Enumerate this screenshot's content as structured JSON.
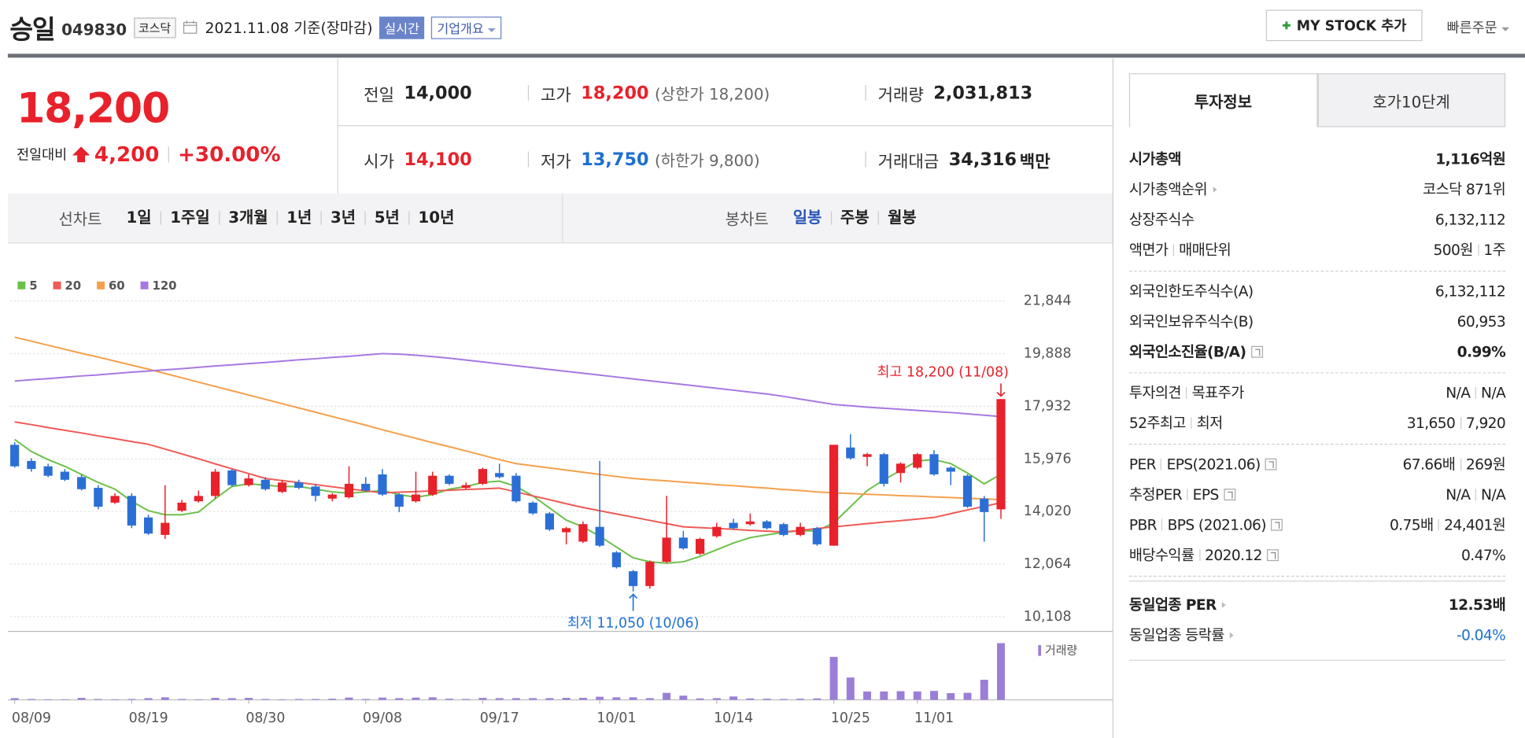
{
  "header": {
    "name": "승일",
    "code": "049830",
    "market": "코스닥",
    "date": "2021.11.08 기준(장마감)",
    "realtime": "실시간",
    "overview": "기업개요",
    "mystock": "MY STOCK 추가",
    "quick_order": "빠른주문"
  },
  "quote": {
    "price": "18,200",
    "change_label": "전일대비",
    "change": "4,200",
    "change_rate": "+30.00%",
    "items": [
      {
        "label": "전일",
        "value": "14,000"
      },
      {
        "label": "고가",
        "value": "18,200",
        "note": "(상한가 18,200)",
        "color": "#e8212b"
      },
      {
        "label": "거래량",
        "value": "2,031,813"
      },
      {
        "label": "시가",
        "value": "14,100",
        "color": "#e8212b"
      },
      {
        "label": "저가",
        "value": "13,750",
        "note": "(하한가 9,800)",
        "color": "#1c6fd2"
      },
      {
        "label": "거래대금",
        "value": "34,316",
        "unit": "백만"
      }
    ]
  },
  "chart_tabs": {
    "line_label": "선차트",
    "line_periods": [
      "1일",
      "1주일",
      "3개월",
      "1년",
      "3년",
      "5년",
      "10년"
    ],
    "candle_label": "봉차트",
    "candle_periods": [
      "일봉",
      "주봉",
      "월봉"
    ]
  },
  "chart_data": {
    "type": "candlestick",
    "categories": [
      "08/09",
      null,
      null,
      null,
      null,
      null,
      null,
      "08/19",
      null,
      null,
      null,
      null,
      null,
      null,
      "08/30",
      null,
      null,
      null,
      null,
      null,
      null,
      "09/08",
      null,
      null,
      null,
      null,
      null,
      null,
      "09/17",
      null,
      null,
      null,
      null,
      null,
      null,
      "10/01",
      null,
      null,
      null,
      null,
      null,
      null,
      "10/14",
      null,
      null,
      null,
      null,
      null,
      null,
      "10/25",
      null,
      null,
      null,
      null,
      "11/01",
      null,
      null,
      null,
      null,
      null
    ],
    "ohlc": [
      [
        16500,
        16600,
        15650,
        15700
      ],
      [
        15900,
        16000,
        15500,
        15600
      ],
      [
        15700,
        15800,
        15300,
        15350
      ],
      [
        15500,
        15600,
        15150,
        15200
      ],
      [
        15300,
        15400,
        14800,
        14850
      ],
      [
        14900,
        15000,
        14100,
        14200
      ],
      [
        14350,
        14700,
        14300,
        14600
      ],
      [
        14600,
        14700,
        13400,
        13500
      ],
      [
        13800,
        13900,
        13150,
        13200
      ],
      [
        13150,
        15000,
        13000,
        13600
      ],
      [
        14050,
        14450,
        14000,
        14350
      ],
      [
        14400,
        14800,
        14350,
        14600
      ],
      [
        14600,
        15600,
        14500,
        15500
      ],
      [
        15550,
        15600,
        14950,
        15000
      ],
      [
        15000,
        15400,
        14950,
        15250
      ],
      [
        15200,
        15300,
        14800,
        14850
      ],
      [
        14750,
        15200,
        14700,
        15100
      ],
      [
        15100,
        15200,
        14850,
        14900
      ],
      [
        14950,
        15050,
        14400,
        14600
      ],
      [
        14500,
        14700,
        14400,
        14650
      ],
      [
        14550,
        15700,
        14500,
        15050
      ],
      [
        15050,
        15300,
        14750,
        14800
      ],
      [
        15400,
        15600,
        14600,
        14650
      ],
      [
        14650,
        14700,
        14000,
        14200
      ],
      [
        14400,
        15500,
        14350,
        14650
      ],
      [
        14650,
        15500,
        14600,
        15350
      ],
      [
        15350,
        15400,
        15000,
        15050
      ],
      [
        14900,
        15100,
        14850,
        15000
      ],
      [
        15050,
        15650,
        15000,
        15600
      ],
      [
        15450,
        15800,
        15250,
        15300
      ],
      [
        15350,
        15450,
        14350,
        14400
      ],
      [
        14350,
        14400,
        13900,
        13950
      ],
      [
        13950,
        14000,
        13300,
        13350
      ],
      [
        13250,
        13450,
        12800,
        13400
      ],
      [
        12900,
        13650,
        12850,
        13550
      ],
      [
        13450,
        15900,
        12700,
        12750
      ],
      [
        12500,
        12550,
        11900,
        11950
      ],
      [
        11800,
        11850,
        11050,
        11250
      ],
      [
        11250,
        12200,
        11150,
        12150
      ],
      [
        12150,
        14600,
        12100,
        13050
      ],
      [
        13050,
        13300,
        12600,
        12650
      ],
      [
        12450,
        13050,
        12400,
        13000
      ],
      [
        13100,
        13600,
        13050,
        13450
      ],
      [
        13600,
        13750,
        13350,
        13400
      ],
      [
        13550,
        13950,
        13500,
        13650
      ],
      [
        13650,
        13700,
        13350,
        13400
      ],
      [
        13550,
        13600,
        13100,
        13150
      ],
      [
        13150,
        13600,
        13100,
        13450
      ],
      [
        13400,
        13450,
        12750,
        12800
      ],
      [
        12750,
        16500,
        12750,
        16500
      ],
      [
        16400,
        16900,
        15950,
        16000
      ],
      [
        16050,
        16200,
        15700,
        16150
      ],
      [
        16150,
        16200,
        14950,
        15050
      ],
      [
        15450,
        15850,
        15100,
        15800
      ],
      [
        15650,
        16200,
        15600,
        16150
      ],
      [
        16150,
        16300,
        15350,
        15400
      ],
      [
        15650,
        15700,
        15000,
        15500
      ],
      [
        15350,
        15400,
        14150,
        14200
      ],
      [
        14500,
        14600,
        12900,
        14000
      ],
      [
        14100,
        18200,
        13750,
        18200
      ]
    ],
    "up_color": "#e8212b",
    "down_color": "#2b6fd6",
    "series": [
      {
        "name": "5",
        "color": "#6cc04a",
        "values": [
          16700,
          16250,
          15950,
          15700,
          15400,
          15100,
          14850,
          14400,
          14050,
          13900,
          13900,
          14000,
          14500,
          14950,
          15050,
          15000,
          14950,
          14950,
          14850,
          14750,
          14700,
          14750,
          14800,
          14650,
          14550,
          14650,
          14850,
          14950,
          15100,
          15150,
          14950,
          14600,
          14150,
          13700,
          13450,
          13100,
          12700,
          12300,
          12150,
          12100,
          12150,
          12350,
          12600,
          12850,
          13050,
          13150,
          13250,
          13300,
          13300,
          13600,
          14200,
          14800,
          15200,
          15550,
          15900,
          15950,
          15800,
          15450,
          15050,
          15400
        ]
      },
      {
        "name": "20",
        "color": "#ef5a55",
        "values": [
          17350,
          17250,
          17140,
          17040,
          16940,
          16830,
          16730,
          16620,
          16520,
          16340,
          16160,
          15980,
          15790,
          15610,
          15430,
          15250,
          15170,
          15100,
          15020,
          14940,
          14860,
          14790,
          14710,
          14740,
          14760,
          14790,
          14810,
          14840,
          14860,
          14890,
          14750,
          14600,
          14460,
          14310,
          14170,
          14050,
          13930,
          13810,
          13690,
          13570,
          13450,
          13420,
          13390,
          13360,
          13320,
          13290,
          13260,
          13320,
          13390,
          13450,
          13510,
          13570,
          13630,
          13680,
          13740,
          13800,
          13940,
          14080,
          14210,
          14350
        ]
      },
      {
        "name": "60",
        "color": "#f5a04a",
        "values": [
          20500,
          20350,
          20200,
          20050,
          19900,
          19760,
          19610,
          19460,
          19310,
          19150,
          18990,
          18830,
          18670,
          18510,
          18350,
          18190,
          18030,
          17870,
          17710,
          17550,
          17390,
          17230,
          17060,
          16900,
          16740,
          16580,
          16430,
          16270,
          16110,
          15950,
          15800,
          15720,
          15640,
          15560,
          15480,
          15400,
          15320,
          15250,
          15200,
          15160,
          15110,
          15070,
          15020,
          14980,
          14930,
          14890,
          14840,
          14800,
          14750,
          14710,
          14690,
          14660,
          14640,
          14610,
          14590,
          14560,
          14540,
          14510,
          14490,
          14460
        ]
      },
      {
        "name": "120",
        "color": "#a678e2",
        "values": [
          18870,
          18920,
          18960,
          19010,
          19060,
          19100,
          19150,
          19200,
          19240,
          19290,
          19330,
          19380,
          19430,
          19470,
          19520,
          19560,
          19610,
          19660,
          19700,
          19750,
          19790,
          19840,
          19890,
          19870,
          19830,
          19780,
          19720,
          19650,
          19580,
          19510,
          19440,
          19370,
          19300,
          19230,
          19160,
          19090,
          19020,
          18950,
          18880,
          18810,
          18740,
          18670,
          18600,
          18530,
          18460,
          18390,
          18300,
          18200,
          18100,
          18000,
          17950,
          17900,
          17860,
          17820,
          17780,
          17740,
          17700,
          17650,
          17600,
          17550
        ]
      }
    ],
    "volume": {
      "name": "거래량",
      "color": "#9b7ed6",
      "values": [
        60000,
        30000,
        20000,
        20000,
        70000,
        30000,
        20000,
        30000,
        60000,
        90000,
        30000,
        20000,
        70000,
        60000,
        70000,
        30000,
        20000,
        30000,
        30000,
        40000,
        80000,
        30000,
        80000,
        60000,
        80000,
        90000,
        40000,
        30000,
        70000,
        60000,
        60000,
        60000,
        60000,
        70000,
        70000,
        110000,
        90000,
        90000,
        60000,
        250000,
        150000,
        50000,
        60000,
        120000,
        50000,
        40000,
        30000,
        40000,
        50000,
        1540000,
        800000,
        300000,
        300000,
        310000,
        300000,
        320000,
        240000,
        250000,
        720000,
        2031813
      ]
    },
    "ylim": [
      10108,
      21844
    ],
    "yticks": [
      {
        "value": 21844,
        "label": "21,844"
      },
      {
        "value": 19888,
        "label": "19,888"
      },
      {
        "value": 17932,
        "label": "17,932"
      },
      {
        "value": 15976,
        "label": "15,976"
      },
      {
        "value": 14020,
        "label": "14,020"
      },
      {
        "value": 12064,
        "label": "12,064"
      },
      {
        "value": 10108,
        "label": "10,108"
      }
    ],
    "grid": true,
    "max_label": "최고 18,200 (11/08)",
    "max_color": "#e8212b",
    "min_label": "최저 11,050 (10/06)",
    "min_color": "#1c6fd2"
  },
  "invest_info": {
    "tabs": [
      "투자정보",
      "호가10단계"
    ],
    "sections": [
      [
        {
          "label": [
            "시가총액"
          ],
          "value": [
            "1,116억원"
          ],
          "bold": true
        },
        {
          "label": [
            "시가총액순위"
          ],
          "value": [
            "코스닥 871위"
          ],
          "arrow": true
        },
        {
          "label": [
            "상장주식수"
          ],
          "value": [
            "6,132,112"
          ]
        },
        {
          "label": [
            "액면가",
            "매매단위"
          ],
          "value": [
            "500원",
            "1주"
          ]
        }
      ],
      [
        {
          "label": [
            "외국인한도주식수(A)"
          ],
          "value": [
            "6,132,112"
          ]
        },
        {
          "label": [
            "외국인보유주식수(B)"
          ],
          "value": [
            "60,953"
          ]
        },
        {
          "label": [
            "외국인소진율(B/A)"
          ],
          "value": [
            "0.99%"
          ],
          "bold": true,
          "help": true
        }
      ],
      [
        {
          "label": [
            "투자의견",
            "목표주가"
          ],
          "value": [
            "N/A",
            "N/A"
          ]
        },
        {
          "label": [
            "52주최고",
            "최저"
          ],
          "value": [
            "31,650",
            "7,920"
          ]
        }
      ],
      [
        {
          "label": [
            "PER",
            "EPS(2021.06)"
          ],
          "value": [
            "67.66배",
            "269원"
          ],
          "help": true
        },
        {
          "label": [
            "추정PER",
            "EPS"
          ],
          "value": [
            "N/A",
            "N/A"
          ],
          "help": true
        },
        {
          "label": [
            "PBR",
            "BPS (2021.06)"
          ],
          "value": [
            "0.75배",
            "24,401원"
          ],
          "help": true
        },
        {
          "label": [
            "배당수익률",
            "2020.12"
          ],
          "value": [
            "0.47%"
          ],
          "help": true
        }
      ],
      [
        {
          "label": [
            "동일업종 PER"
          ],
          "value": [
            "12.53배"
          ],
          "bold": true,
          "arrow": true
        },
        {
          "label": [
            "동일업종 등락률"
          ],
          "value": [
            "-0.04%"
          ],
          "arrow": true,
          "color": "#1c6fd2"
        }
      ]
    ]
  }
}
